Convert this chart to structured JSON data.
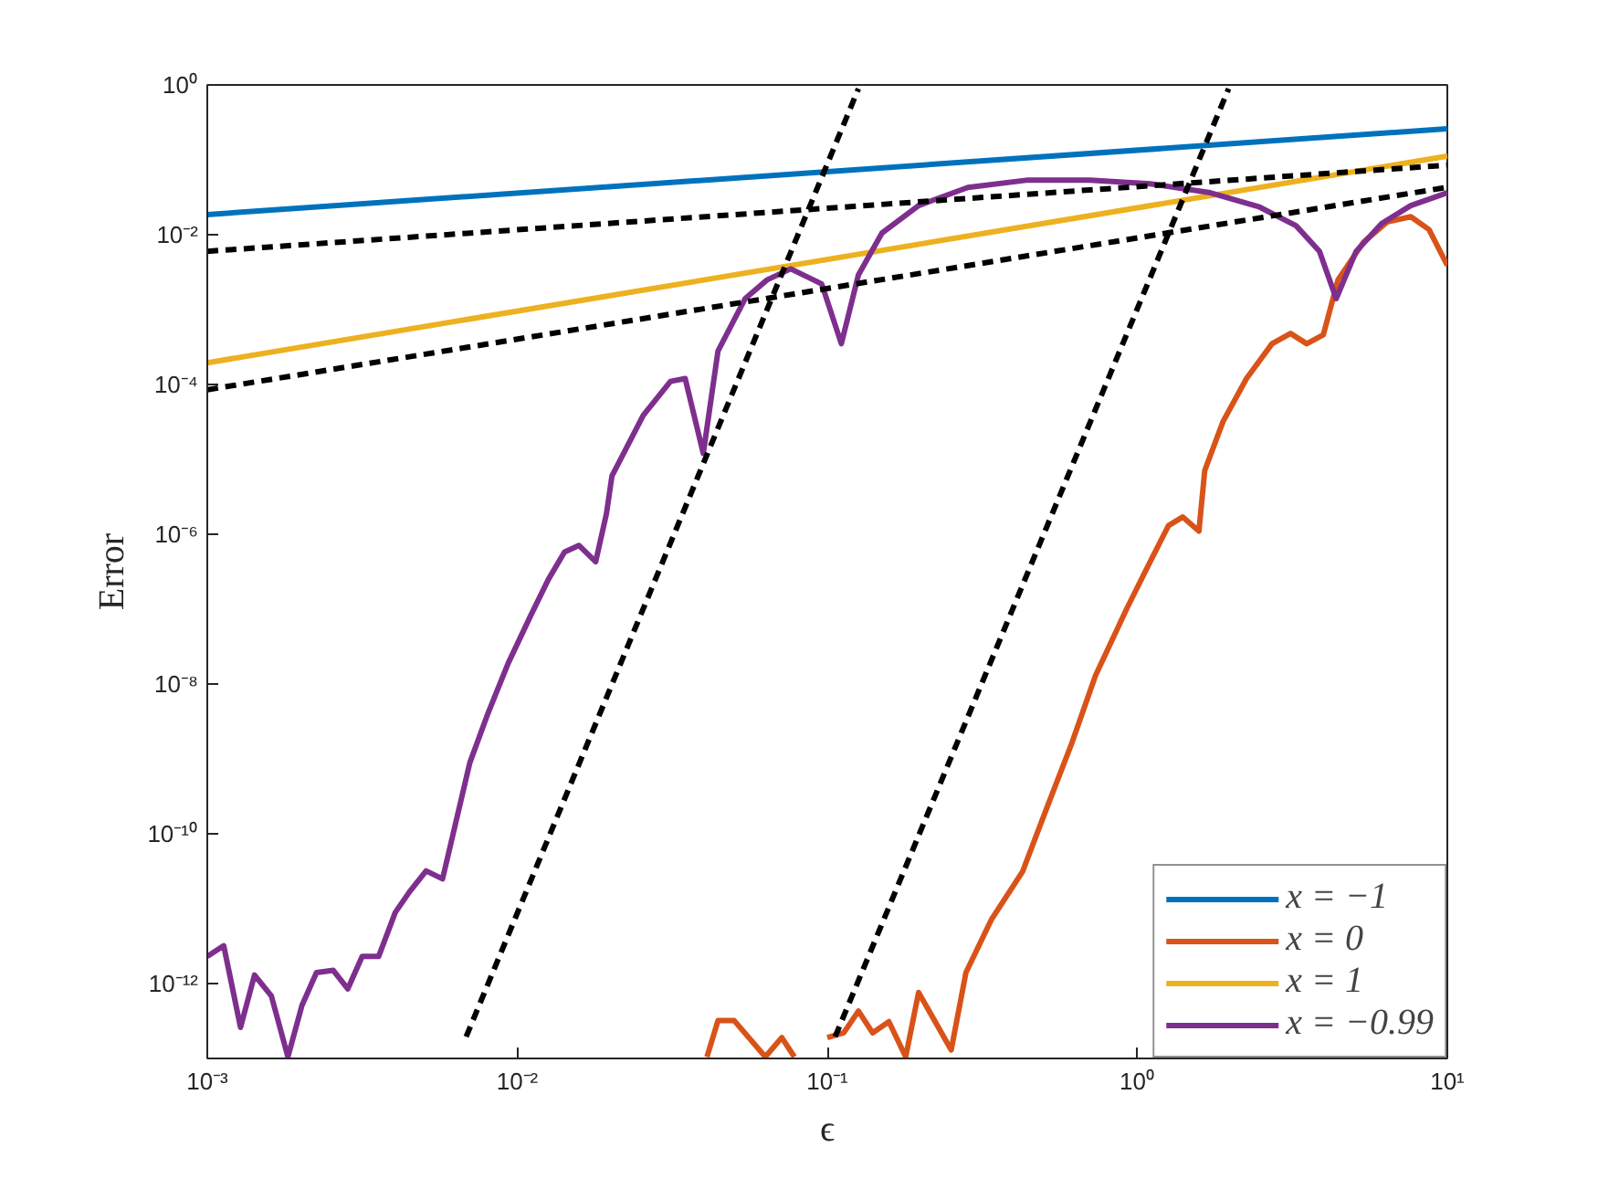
{
  "chart_data": {
    "type": "line",
    "xlabel": "ϵ",
    "ylabel": "Error",
    "log": "xy",
    "grid": false,
    "legend": "bottom right",
    "marker": "none",
    "xlim": [
      0.001,
      10
    ],
    "ylim": [
      1e-13,
      1
    ],
    "xticks": [
      {
        "value": 0.001,
        "label": "10⁻³"
      },
      {
        "value": 0.01,
        "label": "10⁻²"
      },
      {
        "value": 0.1,
        "label": "10⁻¹"
      },
      {
        "value": 1,
        "label": "10⁰"
      },
      {
        "value": 10,
        "label": "10¹"
      }
    ],
    "yticks": [
      {
        "value": 1e-12,
        "label": "10⁻¹²"
      },
      {
        "value": 1e-10,
        "label": "10⁻¹⁰"
      },
      {
        "value": 1e-08,
        "label": "10⁻⁸"
      },
      {
        "value": 1e-06,
        "label": "10⁻⁶"
      },
      {
        "value": 0.0001,
        "label": "10⁻⁴"
      },
      {
        "value": 0.01,
        "label": "10⁻²"
      },
      {
        "value": 1,
        "label": "10⁰"
      }
    ],
    "series": [
      {
        "name": "x = −1",
        "color": "#0072bd",
        "x": [
          0.001,
          10
        ],
        "values": [
          0.0186,
          0.26
        ]
      },
      {
        "name": "x = 0",
        "color": "#d95319",
        "x": [
          0.0409,
          0.0444,
          0.0501,
          0.0631,
          0.0713,
          0.0783,
          0.09,
          0.1,
          0.113,
          0.126,
          0.14,
          0.158,
          0.179,
          0.197,
          0.251,
          0.28,
          0.338,
          0.426,
          0.508,
          0.614,
          0.733,
          0.923,
          1.1,
          1.26,
          1.4,
          1.58,
          1.65,
          1.89,
          2.25,
          2.72,
          3.12,
          3.52,
          3.98,
          4.44,
          5.36,
          6.4,
          7.62,
          8.73,
          10
        ],
        "values": [
          1.05e-13,
          3.2e-13,
          3.2e-13,
          1.05e-13,
          1.9e-13,
          1.05e-13,
          null,
          1.9e-13,
          2.2e-13,
          4.3e-13,
          2.2e-13,
          3.1e-13,
          1.05e-13,
          7.6e-13,
          1.3e-13,
          1.4e-12,
          7.1e-12,
          3.1e-11,
          2.1e-10,
          1.6e-09,
          1.3e-08,
          1e-07,
          4.3e-07,
          1.3e-06,
          1.7e-06,
          1.1e-06,
          7.1e-06,
          3.2e-05,
          0.00012,
          0.00035,
          0.00048,
          0.00035,
          0.00046,
          0.0025,
          0.0079,
          0.0148,
          0.0174,
          0.0117,
          0.0039
        ]
      },
      {
        "name": "x = 1",
        "color": "#edb120",
        "x": [
          0.001,
          10
        ],
        "values": [
          0.000195,
          0.112
        ]
      },
      {
        "name": "x = −0.99",
        "color": "#7e2f8e",
        "x": [
          0.001,
          0.00113,
          0.00128,
          0.00142,
          0.00161,
          0.00182,
          0.00202,
          0.00225,
          0.00255,
          0.00284,
          0.00316,
          0.00357,
          0.00404,
          0.0045,
          0.00508,
          0.00574,
          0.00703,
          0.00805,
          0.00935,
          0.011,
          0.0126,
          0.0142,
          0.0158,
          0.0179,
          0.0194,
          0.0202,
          0.0255,
          0.0312,
          0.0348,
          0.0398,
          0.0444,
          0.0543,
          0.064,
          0.0762,
          0.0959,
          0.111,
          0.126,
          0.15,
          0.197,
          0.284,
          0.444,
          0.703,
          1.1,
          1.72,
          2.48,
          3.25,
          3.87,
          4.38,
          5.08,
          6.14,
          7.62,
          10
        ],
        "values": [
          2.3e-12,
          3.2e-12,
          2.6e-13,
          1.3e-12,
          6.8e-13,
          1.05e-13,
          5.1e-13,
          1.4e-12,
          1.5e-12,
          8.5e-13,
          2.3e-12,
          2.3e-12,
          8.9e-12,
          1.7e-11,
          3.2e-11,
          2.5e-11,
          8.9e-10,
          4.1e-09,
          1.9e-08,
          7.9e-08,
          2.5e-07,
          5.8e-07,
          7.1e-07,
          4.3e-07,
          1.9e-06,
          6e-06,
          3.9e-05,
          0.00011,
          0.00012,
          1.2e-05,
          0.00028,
          0.0014,
          0.0025,
          0.0035,
          0.0022,
          0.00035,
          0.0029,
          0.0105,
          0.0245,
          0.0427,
          0.0537,
          0.0537,
          0.0479,
          0.0363,
          0.0234,
          0.0132,
          0.006,
          0.0014,
          0.006,
          0.0141,
          0.0245,
          0.0363
        ]
      },
      {
        "color": "#000000",
        "line_style": "dashed",
        "x": [
          0.001,
          10
        ],
        "values": [
          0.006,
          0.085
        ]
      },
      {
        "color": "#000000",
        "line_style": "dashed",
        "x": [
          0.001,
          10
        ],
        "values": [
          8.5e-05,
          0.043
        ]
      },
      {
        "color": "#000000",
        "line_style": "dashed",
        "x": [
          0.00684,
          0.126
        ],
        "values": [
          1.95e-13,
          0.89
        ]
      },
      {
        "color": "#000000",
        "line_style": "dashed",
        "x": [
          0.106,
          1.97
        ],
        "values": [
          1.95e-13,
          0.89
        ]
      }
    ]
  }
}
